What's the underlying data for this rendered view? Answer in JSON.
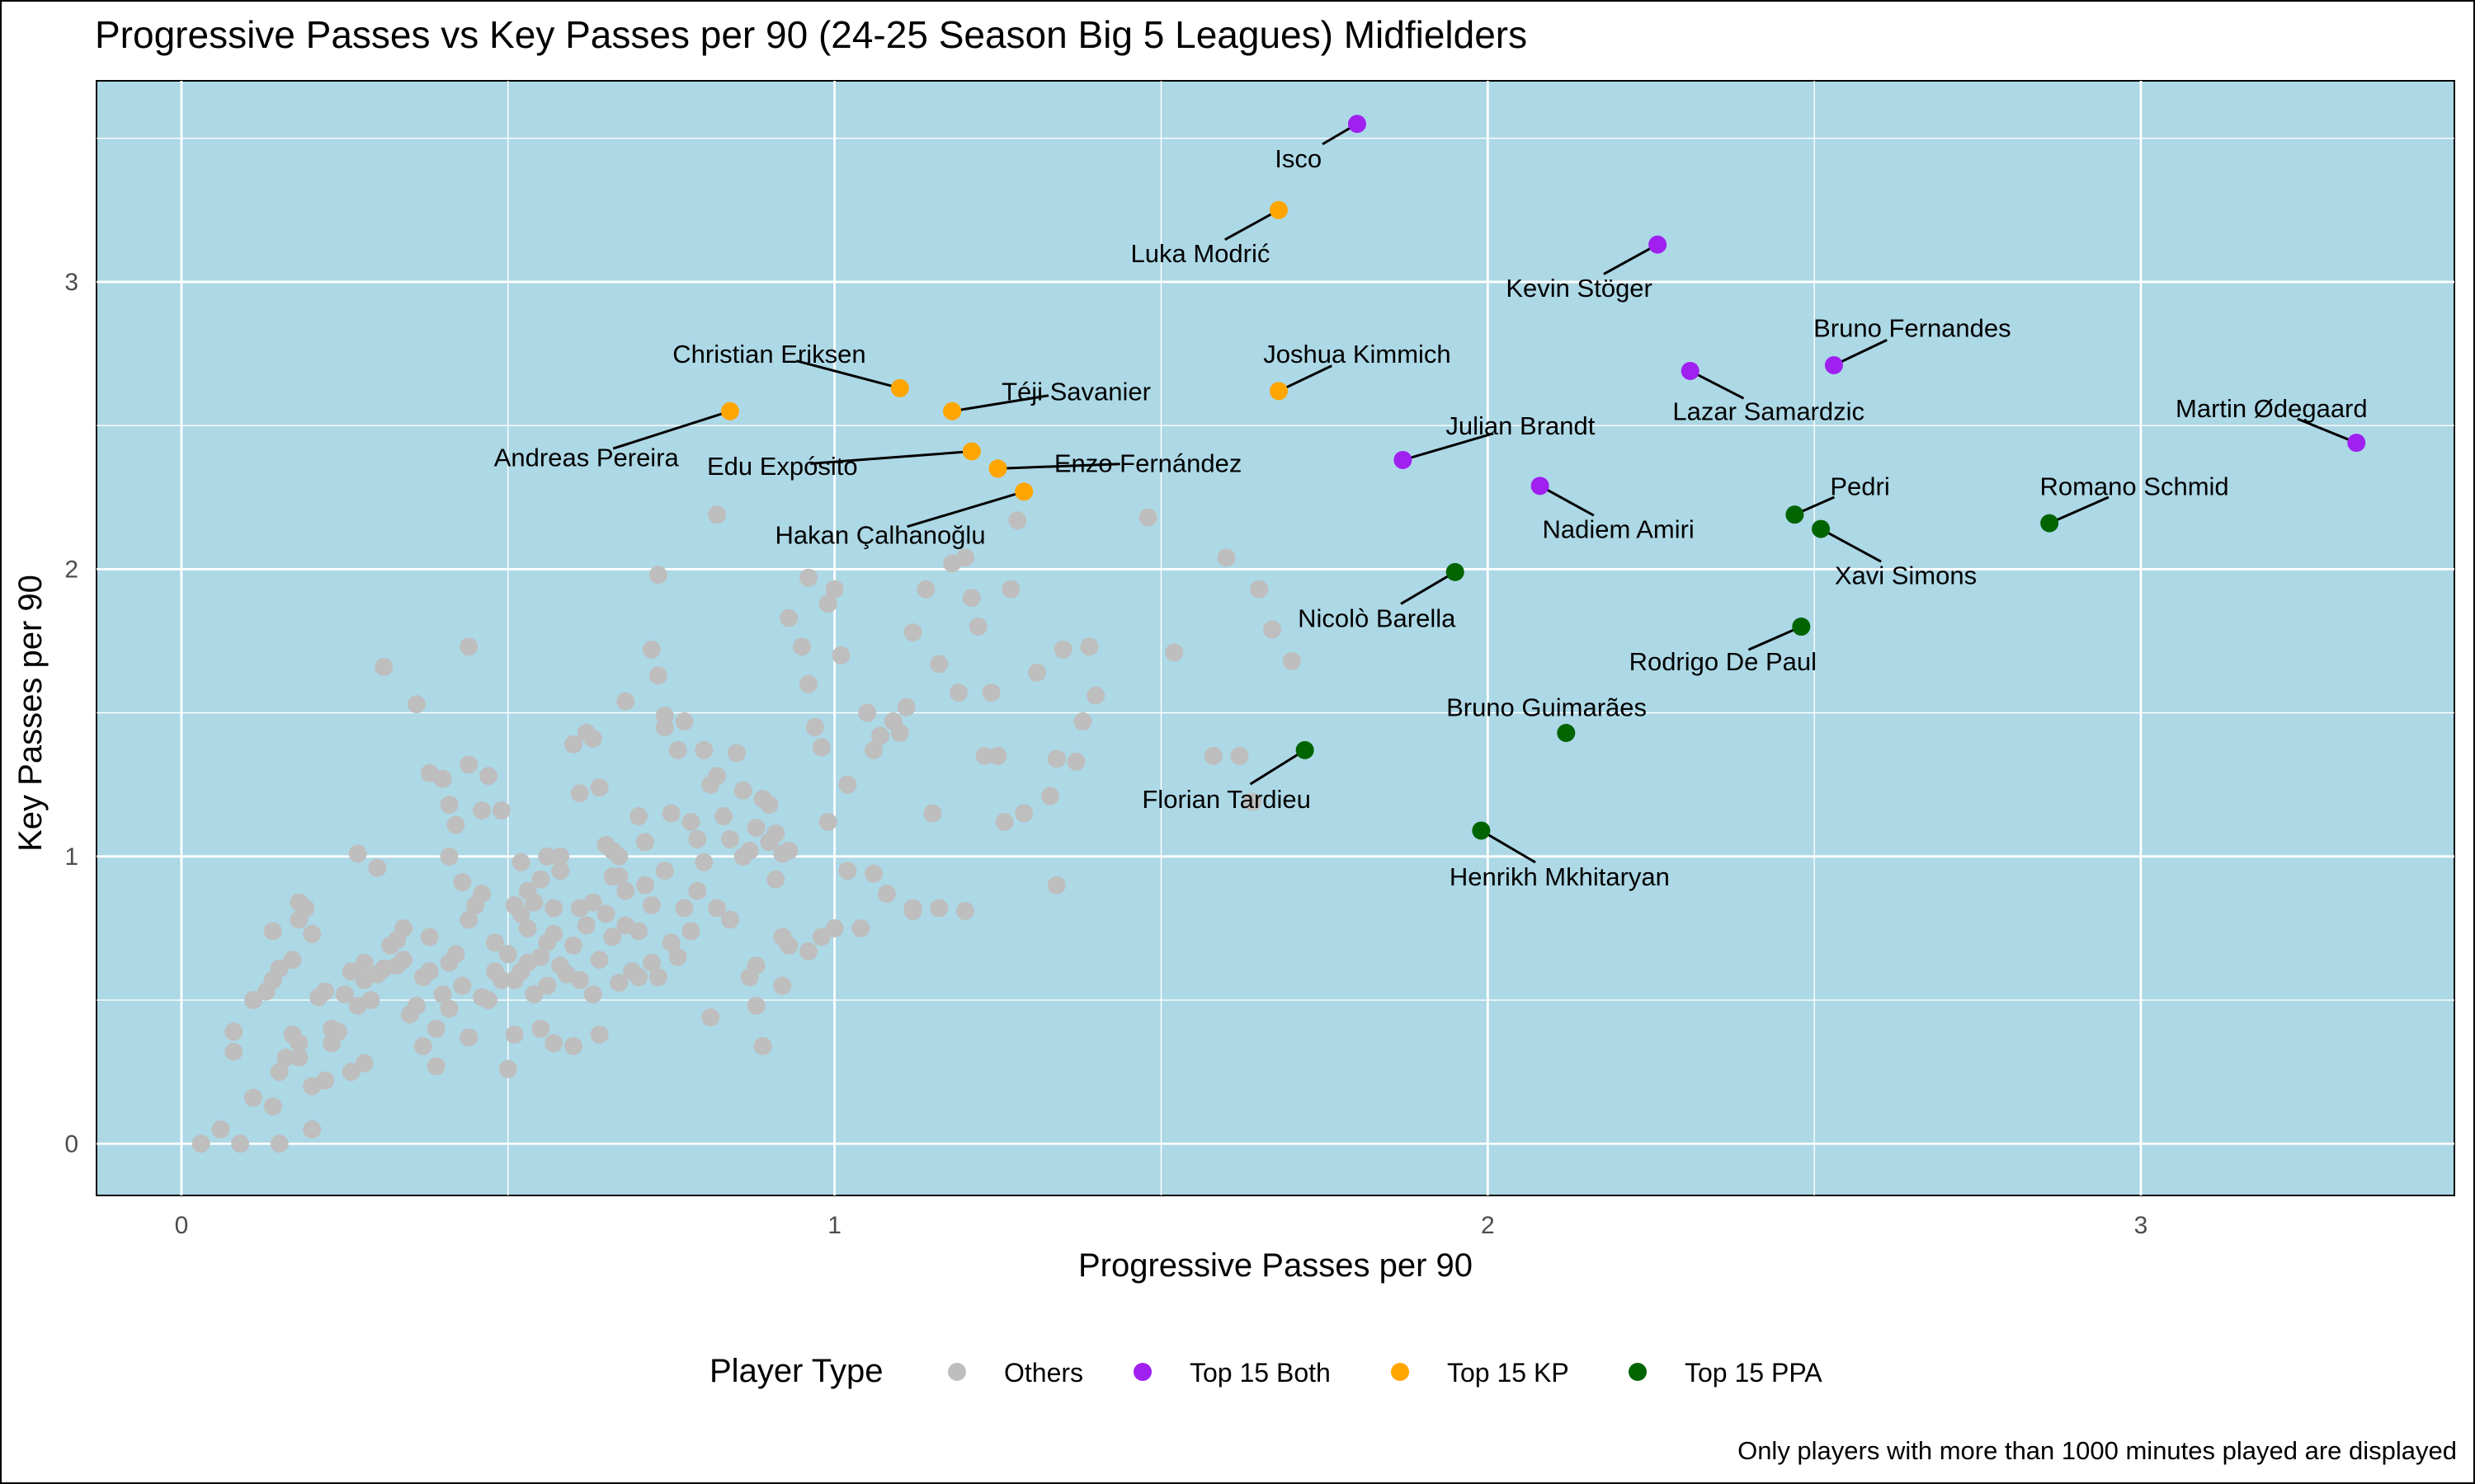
{
  "chart_data": {
    "type": "scatter",
    "title": "Progressive Passes vs Key Passes per 90 (24-25 Season Big 5 Leagues) Midfielders",
    "xlabel": "Progressive Passes per 90",
    "ylabel": "Key Passes per 90",
    "xlim": [
      -0.13,
      3.48
    ],
    "ylim": [
      -0.18,
      3.7
    ],
    "x_ticks": [
      0,
      1,
      2,
      3
    ],
    "y_ticks": [
      0,
      1,
      2,
      3
    ],
    "grid": true,
    "background": "#add8e6",
    "legend": {
      "title": "Player Type",
      "position": "bottom",
      "entries": [
        {
          "label": "Others",
          "color": "#bebebe"
        },
        {
          "label": "Top 15 Both",
          "color": "#a020f0"
        },
        {
          "label": "Top 15 KP",
          "color": "#ffa500"
        },
        {
          "label": "Top 15 PPA",
          "color": "#006400"
        }
      ]
    },
    "caption": "Only players with more than 1000 minutes played are displayed",
    "highlighted": [
      {
        "name": "Isco",
        "group": "Top 15 Both",
        "x": 1.8,
        "y": 3.55,
        "lx": 1.71,
        "ly": 3.43,
        "anchor": "middle"
      },
      {
        "name": "Luka Modrić",
        "group": "Top 15 KP",
        "x": 1.68,
        "y": 3.25,
        "lx": 1.56,
        "ly": 3.1,
        "anchor": "middle"
      },
      {
        "name": "Kevin Stöger",
        "group": "Top 15 Both",
        "x": 2.26,
        "y": 3.13,
        "lx": 2.14,
        "ly": 2.98,
        "anchor": "middle"
      },
      {
        "name": "Bruno Fernandes",
        "group": "Top 15 Both",
        "x": 2.53,
        "y": 2.71,
        "lx": 2.65,
        "ly": 2.84,
        "anchor": "middle"
      },
      {
        "name": "Christian Eriksen",
        "group": "Top 15 KP",
        "x": 1.1,
        "y": 2.63,
        "lx": 0.9,
        "ly": 2.75,
        "anchor": "middle"
      },
      {
        "name": "Joshua Kimmich",
        "group": "Top 15 KP",
        "x": 1.68,
        "y": 2.62,
        "lx": 1.8,
        "ly": 2.75,
        "anchor": "middle"
      },
      {
        "name": "Lazar Samardzic",
        "group": "Top 15 Both",
        "x": 2.31,
        "y": 2.69,
        "lx": 2.43,
        "ly": 2.55,
        "anchor": "middle"
      },
      {
        "name": "Téji Savanier",
        "group": "Top 15 KP",
        "x": 1.18,
        "y": 2.55,
        "lx": 1.37,
        "ly": 2.62,
        "anchor": "middle"
      },
      {
        "name": "Andreas Pereira",
        "group": "Top 15 KP",
        "x": 0.84,
        "y": 2.55,
        "lx": 0.62,
        "ly": 2.39,
        "anchor": "middle"
      },
      {
        "name": "Martin Ødegaard",
        "group": "Top 15 Both",
        "x": 3.33,
        "y": 2.44,
        "lx": 3.2,
        "ly": 2.56,
        "anchor": "middle"
      },
      {
        "name": "Julian Brandt",
        "group": "Top 15 Both",
        "x": 1.87,
        "y": 2.38,
        "lx": 2.05,
        "ly": 2.5,
        "anchor": "middle"
      },
      {
        "name": "Edu Expósito",
        "group": "Top 15 KP",
        "x": 1.21,
        "y": 2.41,
        "lx": 0.92,
        "ly": 2.36,
        "anchor": "middle"
      },
      {
        "name": "Enzo Fernández",
        "group": "Top 15 KP",
        "x": 1.25,
        "y": 2.35,
        "lx": 1.48,
        "ly": 2.37,
        "anchor": "middle"
      },
      {
        "name": "Pedri",
        "group": "Top 15 PPA",
        "x": 2.47,
        "y": 2.19,
        "lx": 2.57,
        "ly": 2.29,
        "anchor": "middle"
      },
      {
        "name": "Romano Schmid",
        "group": "Top 15 PPA",
        "x": 2.86,
        "y": 2.16,
        "lx": 2.99,
        "ly": 2.29,
        "anchor": "middle"
      },
      {
        "name": "Nadiem Amiri",
        "group": "Top 15 Both",
        "x": 2.08,
        "y": 2.29,
        "lx": 2.2,
        "ly": 2.14,
        "anchor": "middle"
      },
      {
        "name": "Hakan Çalhanoğlu",
        "group": "Top 15 KP",
        "x": 1.29,
        "y": 2.27,
        "lx": 1.07,
        "ly": 2.12,
        "anchor": "middle"
      },
      {
        "name": "Xavi Simons",
        "group": "Top 15 PPA",
        "x": 2.51,
        "y": 2.14,
        "lx": 2.64,
        "ly": 1.98,
        "anchor": "middle"
      },
      {
        "name": "Nicolò Barella",
        "group": "Top 15 PPA",
        "x": 1.95,
        "y": 1.99,
        "lx": 1.83,
        "ly": 1.83,
        "anchor": "middle"
      },
      {
        "name": "Rodrigo De Paul",
        "group": "Top 15 PPA",
        "x": 2.48,
        "y": 1.8,
        "lx": 2.36,
        "ly": 1.68,
        "anchor": "middle"
      },
      {
        "name": "Bruno Guimarães",
        "group": "Top 15 PPA",
        "x": 2.12,
        "y": 1.43,
        "lx": 2.09,
        "ly": 1.52,
        "anchor": "middle"
      },
      {
        "name": "Florian Tardieu",
        "group": "Top 15 PPA",
        "x": 1.72,
        "y": 1.37,
        "lx": 1.6,
        "ly": 1.2,
        "anchor": "middle"
      },
      {
        "name": "Henrikh Mkhitaryan",
        "group": "Top 15 PPA",
        "x": 1.99,
        "y": 1.09,
        "lx": 2.11,
        "ly": 0.93,
        "anchor": "middle"
      }
    ],
    "others": [
      [
        0.03,
        0.0
      ],
      [
        0.06,
        0.05
      ],
      [
        0.09,
        0.0
      ],
      [
        0.15,
        0.0
      ],
      [
        0.08,
        0.39
      ],
      [
        0.08,
        0.32
      ],
      [
        0.11,
        0.16
      ],
      [
        0.14,
        0.13
      ],
      [
        0.15,
        0.25
      ],
      [
        0.16,
        0.3
      ],
      [
        0.17,
        0.38
      ],
      [
        0.18,
        0.35
      ],
      [
        0.18,
        0.3
      ],
      [
        0.2,
        0.05
      ],
      [
        0.2,
        0.2
      ],
      [
        0.22,
        0.22
      ],
      [
        0.23,
        0.35
      ],
      [
        0.23,
        0.4
      ],
      [
        0.26,
        0.25
      ],
      [
        0.28,
        0.28
      ],
      [
        0.11,
        0.5
      ],
      [
        0.13,
        0.53
      ],
      [
        0.14,
        0.57
      ],
      [
        0.15,
        0.61
      ],
      [
        0.17,
        0.64
      ],
      [
        0.18,
        0.78
      ],
      [
        0.18,
        0.84
      ],
      [
        0.2,
        0.73
      ],
      [
        0.19,
        0.82
      ],
      [
        0.14,
        0.74
      ],
      [
        0.21,
        0.51
      ],
      [
        0.22,
        0.53
      ],
      [
        0.24,
        0.39
      ],
      [
        0.25,
        0.52
      ],
      [
        0.26,
        0.6
      ],
      [
        0.27,
        0.48
      ],
      [
        0.28,
        0.57
      ],
      [
        0.28,
        0.63
      ],
      [
        0.29,
        0.5
      ],
      [
        0.3,
        0.59
      ],
      [
        0.31,
        0.61
      ],
      [
        0.32,
        0.69
      ],
      [
        0.33,
        0.62
      ],
      [
        0.33,
        0.71
      ],
      [
        0.34,
        0.75
      ],
      [
        0.34,
        0.64
      ],
      [
        0.35,
        0.45
      ],
      [
        0.36,
        0.48
      ],
      [
        0.37,
        0.34
      ],
      [
        0.37,
        0.58
      ],
      [
        0.38,
        0.6
      ],
      [
        0.38,
        0.72
      ],
      [
        0.39,
        0.4
      ],
      [
        0.39,
        0.27
      ],
      [
        0.4,
        0.52
      ],
      [
        0.41,
        0.47
      ],
      [
        0.41,
        0.63
      ],
      [
        0.42,
        0.66
      ],
      [
        0.43,
        0.55
      ],
      [
        0.44,
        0.37
      ],
      [
        0.44,
        0.78
      ],
      [
        0.45,
        0.83
      ],
      [
        0.46,
        0.87
      ],
      [
        0.46,
        0.51
      ],
      [
        0.47,
        0.5
      ],
      [
        0.48,
        0.6
      ],
      [
        0.48,
        0.7
      ],
      [
        0.49,
        0.57
      ],
      [
        0.5,
        0.26
      ],
      [
        0.5,
        0.66
      ],
      [
        0.51,
        0.38
      ],
      [
        0.51,
        0.57
      ],
      [
        0.52,
        0.6
      ],
      [
        0.52,
        0.8
      ],
      [
        0.53,
        0.63
      ],
      [
        0.53,
        0.75
      ],
      [
        0.54,
        0.84
      ],
      [
        0.54,
        0.52
      ],
      [
        0.55,
        0.65
      ],
      [
        0.55,
        0.4
      ],
      [
        0.56,
        0.55
      ],
      [
        0.56,
        0.7
      ],
      [
        0.57,
        0.35
      ],
      [
        0.57,
        0.73
      ],
      [
        0.58,
        0.62
      ],
      [
        0.58,
        0.95
      ],
      [
        0.59,
        0.59
      ],
      [
        0.6,
        0.34
      ],
      [
        0.6,
        0.69
      ],
      [
        0.61,
        0.82
      ],
      [
        0.61,
        0.57
      ],
      [
        0.62,
        0.76
      ],
      [
        0.63,
        0.52
      ],
      [
        0.63,
        0.84
      ],
      [
        0.64,
        0.38
      ],
      [
        0.64,
        0.64
      ],
      [
        0.65,
        0.8
      ],
      [
        0.66,
        0.72
      ],
      [
        0.66,
        0.93
      ],
      [
        0.67,
        0.56
      ],
      [
        0.67,
        1.0
      ],
      [
        0.68,
        0.76
      ],
      [
        0.68,
        0.88
      ],
      [
        0.69,
        0.6
      ],
      [
        0.7,
        0.74
      ],
      [
        0.7,
        0.58
      ],
      [
        0.71,
        0.9
      ],
      [
        0.72,
        0.63
      ],
      [
        0.72,
        0.83
      ],
      [
        0.73,
        0.58
      ],
      [
        0.74,
        0.95
      ],
      [
        0.75,
        0.7
      ],
      [
        0.76,
        0.65
      ],
      [
        0.77,
        0.82
      ],
      [
        0.78,
        0.74
      ],
      [
        0.79,
        0.88
      ],
      [
        0.8,
        0.98
      ],
      [
        0.81,
        0.44
      ],
      [
        0.82,
        0.82
      ],
      [
        0.84,
        0.78
      ],
      [
        0.86,
        1.0
      ],
      [
        0.87,
        0.58
      ],
      [
        0.88,
        0.62
      ],
      [
        0.88,
        0.48
      ],
      [
        0.89,
        0.34
      ],
      [
        0.9,
        1.05
      ],
      [
        0.91,
        0.92
      ],
      [
        0.92,
        0.55
      ],
      [
        0.92,
        0.72
      ],
      [
        0.93,
        0.69
      ],
      [
        0.96,
        0.67
      ],
      [
        0.98,
        0.72
      ],
      [
        1.0,
        0.75
      ],
      [
        1.02,
        0.95
      ],
      [
        1.04,
        0.75
      ],
      [
        1.06,
        0.94
      ],
      [
        1.08,
        0.87
      ],
      [
        1.12,
        0.82
      ],
      [
        1.16,
        0.82
      ],
      [
        1.2,
        0.81
      ],
      [
        0.27,
        1.01
      ],
      [
        0.3,
        0.96
      ],
      [
        0.31,
        1.66
      ],
      [
        0.36,
        1.53
      ],
      [
        0.38,
        1.29
      ],
      [
        0.4,
        1.27
      ],
      [
        0.41,
        1.18
      ],
      [
        0.41,
        1.0
      ],
      [
        0.42,
        1.11
      ],
      [
        0.43,
        0.91
      ],
      [
        0.44,
        1.73
      ],
      [
        0.44,
        1.32
      ],
      [
        0.46,
        1.16
      ],
      [
        0.47,
        1.28
      ],
      [
        0.49,
        1.16
      ],
      [
        0.51,
        0.83
      ],
      [
        0.52,
        0.98
      ],
      [
        0.53,
        0.88
      ],
      [
        0.55,
        0.92
      ],
      [
        0.56,
        1.0
      ],
      [
        0.58,
        1.0
      ],
      [
        0.6,
        1.39
      ],
      [
        0.61,
        1.22
      ],
      [
        0.62,
        1.43
      ],
      [
        0.63,
        1.41
      ],
      [
        0.64,
        1.24
      ],
      [
        0.65,
        1.04
      ],
      [
        0.66,
        1.02
      ],
      [
        0.67,
        0.93
      ],
      [
        0.68,
        1.54
      ],
      [
        0.7,
        1.14
      ],
      [
        0.71,
        1.05
      ],
      [
        0.72,
        1.72
      ],
      [
        0.73,
        1.63
      ],
      [
        0.74,
        1.49
      ],
      [
        0.74,
        1.45
      ],
      [
        0.75,
        1.15
      ],
      [
        0.76,
        1.37
      ],
      [
        0.77,
        1.47
      ],
      [
        0.78,
        1.12
      ],
      [
        0.79,
        1.06
      ],
      [
        0.8,
        1.37
      ],
      [
        0.81,
        1.25
      ],
      [
        0.82,
        1.28
      ],
      [
        0.83,
        1.14
      ],
      [
        0.84,
        1.06
      ],
      [
        0.85,
        1.36
      ],
      [
        0.86,
        1.23
      ],
      [
        0.87,
        1.02
      ],
      [
        0.88,
        1.1
      ],
      [
        0.89,
        1.2
      ],
      [
        0.9,
        1.18
      ],
      [
        0.91,
        1.08
      ],
      [
        0.92,
        1.01
      ],
      [
        0.93,
        1.02
      ],
      [
        0.95,
        1.73
      ],
      [
        0.96,
        1.6
      ],
      [
        0.97,
        1.45
      ],
      [
        0.98,
        1.38
      ],
      [
        0.99,
        1.12
      ],
      [
        1.0,
        1.93
      ],
      [
        1.01,
        1.7
      ],
      [
        1.02,
        1.25
      ],
      [
        1.05,
        1.5
      ],
      [
        1.06,
        1.37
      ],
      [
        1.07,
        1.42
      ],
      [
        1.09,
        1.47
      ],
      [
        1.1,
        1.43
      ],
      [
        1.11,
        1.52
      ],
      [
        1.12,
        1.78
      ],
      [
        1.14,
        1.93
      ],
      [
        1.15,
        1.15
      ],
      [
        1.16,
        1.67
      ],
      [
        1.18,
        2.02
      ],
      [
        1.19,
        1.57
      ],
      [
        1.21,
        1.9
      ],
      [
        1.22,
        1.8
      ],
      [
        1.23,
        1.35
      ],
      [
        1.24,
        1.57
      ],
      [
        1.25,
        1.35
      ],
      [
        1.26,
        1.12
      ],
      [
        1.27,
        1.93
      ],
      [
        1.29,
        1.15
      ],
      [
        1.31,
        1.64
      ],
      [
        1.33,
        1.21
      ],
      [
        1.34,
        1.34
      ],
      [
        1.35,
        1.72
      ],
      [
        1.37,
        1.33
      ],
      [
        1.38,
        1.47
      ],
      [
        1.39,
        1.73
      ],
      [
        1.4,
        1.56
      ],
      [
        1.48,
        2.18
      ],
      [
        1.52,
        1.71
      ],
      [
        1.58,
        1.35
      ],
      [
        1.6,
        2.04
      ],
      [
        1.62,
        1.35
      ],
      [
        1.64,
        1.19
      ],
      [
        1.65,
        1.93
      ],
      [
        1.67,
        1.79
      ],
      [
        1.7,
        1.68
      ],
      [
        0.73,
        1.98
      ],
      [
        0.82,
        2.19
      ],
      [
        0.96,
        1.97
      ],
      [
        0.99,
        1.88
      ],
      [
        1.2,
        2.04
      ],
      [
        1.28,
        2.17
      ],
      [
        0.93,
        1.83
      ],
      [
        1.34,
        0.9
      ],
      [
        1.12,
        0.81
      ],
      [
        0.57,
        0.82
      ]
    ]
  }
}
